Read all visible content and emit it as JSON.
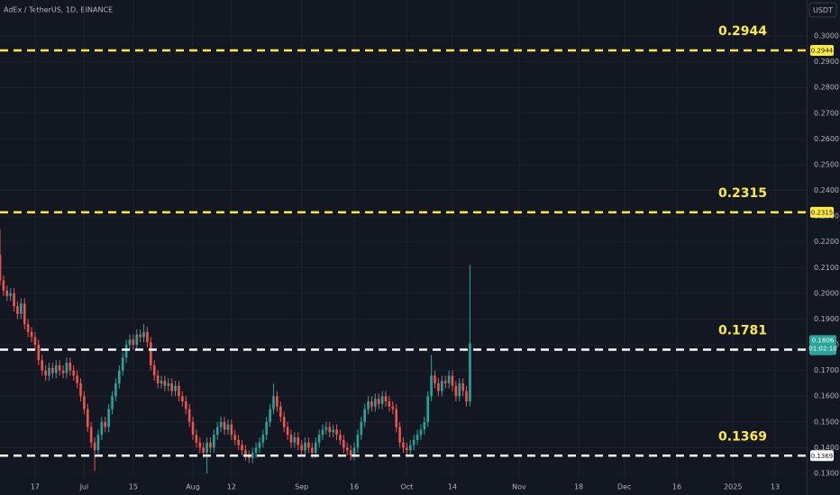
{
  "chart_data": {
    "type": "candlestick",
    "title": "AdEx / TetherUS, 1D, BINANCE",
    "currency": "USDT",
    "up_color": "#26a69a",
    "down_color": "#ef5350",
    "grid": true,
    "xlim": [
      0,
      230
    ],
    "ylim": [
      0.1286,
      0.314
    ],
    "xticks": [
      {
        "value": 10,
        "label": "17"
      },
      {
        "value": 24,
        "label": "Jul"
      },
      {
        "value": 38,
        "label": "15"
      },
      {
        "value": 55,
        "label": "Aug"
      },
      {
        "value": 66,
        "label": "12"
      },
      {
        "value": 86,
        "label": "Sep"
      },
      {
        "value": 101,
        "label": "16"
      },
      {
        "value": 116,
        "label": "Oct"
      },
      {
        "value": 129,
        "label": "14"
      },
      {
        "value": 148,
        "label": "Nov"
      },
      {
        "value": 165,
        "label": "18"
      },
      {
        "value": 178,
        "label": "Dec"
      },
      {
        "value": 193,
        "label": "16"
      },
      {
        "value": 209,
        "label": "2025"
      },
      {
        "value": 221,
        "label": "13"
      }
    ],
    "yticks": [
      {
        "value": 0.13,
        "label": "0.1300"
      },
      {
        "value": 0.14,
        "label": "0.1400"
      },
      {
        "value": 0.15,
        "label": "0.1500"
      },
      {
        "value": 0.16,
        "label": "0.1600"
      },
      {
        "value": 0.17,
        "label": "0.1700"
      },
      {
        "value": 0.18,
        "label": "0.1800"
      },
      {
        "value": 0.19,
        "label": "0.1900"
      },
      {
        "value": 0.2,
        "label": "0.2000"
      },
      {
        "value": 0.21,
        "label": "0.2100"
      },
      {
        "value": 0.22,
        "label": "0.2200"
      },
      {
        "value": 0.23,
        "label": "0.2300"
      },
      {
        "value": 0.24,
        "label": "0.2400"
      },
      {
        "value": 0.25,
        "label": "0.2500"
      },
      {
        "value": 0.26,
        "label": "0.2600"
      },
      {
        "value": 0.27,
        "label": "0.2700"
      },
      {
        "value": 0.28,
        "label": "0.2800"
      },
      {
        "value": 0.29,
        "label": "0.2900"
      },
      {
        "value": 0.3,
        "label": "0.3000"
      }
    ],
    "levels": [
      {
        "value": 0.2944,
        "color": "#ffeb3b"
      },
      {
        "value": 0.2315,
        "color": "#ffeb3b"
      },
      {
        "value": 0.1781,
        "color": "#ffffff"
      },
      {
        "value": 0.1369,
        "color": "#ffffff"
      }
    ],
    "countdown": "01:02:10",
    "x": [
      0,
      1,
      2,
      3,
      4,
      5,
      6,
      7,
      8,
      9,
      10,
      11,
      12,
      13,
      14,
      15,
      16,
      17,
      18,
      19,
      20,
      21,
      22,
      23,
      24,
      25,
      26,
      27,
      28,
      29,
      30,
      31,
      32,
      33,
      34,
      35,
      36,
      37,
      38,
      39,
      40,
      41,
      42,
      43,
      44,
      45,
      46,
      47,
      48,
      49,
      50,
      51,
      52,
      53,
      54,
      55,
      56,
      57,
      58,
      59,
      60,
      61,
      62,
      63,
      64,
      65,
      66,
      67,
      68,
      69,
      70,
      71,
      72,
      73,
      74,
      75,
      76,
      77,
      78,
      79,
      80,
      81,
      82,
      83,
      84,
      85,
      86,
      87,
      88,
      89,
      90,
      91,
      92,
      93,
      94,
      95,
      96,
      97,
      98,
      99,
      100,
      101,
      102,
      103,
      104,
      105,
      106,
      107,
      108,
      109,
      110,
      111,
      112,
      113,
      114,
      115,
      116,
      117,
      118,
      119,
      120,
      121,
      122,
      123,
      124,
      125,
      126,
      127,
      128,
      129,
      130,
      131,
      132,
      133,
      134
    ],
    "open": [
      0.215,
      0.205,
      0.201,
      0.199,
      0.2,
      0.195,
      0.192,
      0.196,
      0.188,
      0.185,
      0.183,
      0.18,
      0.174,
      0.17,
      0.168,
      0.171,
      0.169,
      0.172,
      0.17,
      0.169,
      0.173,
      0.17,
      0.168,
      0.165,
      0.16,
      0.155,
      0.148,
      0.142,
      0.139,
      0.145,
      0.15,
      0.148,
      0.155,
      0.16,
      0.165,
      0.17,
      0.175,
      0.18,
      0.182,
      0.18,
      0.184,
      0.183,
      0.185,
      0.181,
      0.172,
      0.168,
      0.165,
      0.166,
      0.164,
      0.165,
      0.162,
      0.164,
      0.16,
      0.158,
      0.155,
      0.15,
      0.145,
      0.142,
      0.14,
      0.138,
      0.142,
      0.14,
      0.145,
      0.148,
      0.15,
      0.147,
      0.149,
      0.145,
      0.143,
      0.141,
      0.139,
      0.137,
      0.136,
      0.138,
      0.14,
      0.142,
      0.145,
      0.15,
      0.155,
      0.16,
      0.156,
      0.152,
      0.148,
      0.145,
      0.142,
      0.144,
      0.141,
      0.139,
      0.142,
      0.14,
      0.138,
      0.142,
      0.145,
      0.147,
      0.148,
      0.146,
      0.147,
      0.145,
      0.143,
      0.14,
      0.139,
      0.137,
      0.14,
      0.145,
      0.15,
      0.155,
      0.158,
      0.156,
      0.159,
      0.157,
      0.16,
      0.158,
      0.156,
      0.155,
      0.148,
      0.142,
      0.14,
      0.139,
      0.141,
      0.143,
      0.145,
      0.147,
      0.15,
      0.16,
      0.168,
      0.165,
      0.162,
      0.166,
      0.165,
      0.168,
      0.164,
      0.16,
      0.165,
      0.162,
      0.158
    ],
    "high": [
      0.225,
      0.207,
      0.203,
      0.202,
      0.202,
      0.197,
      0.198,
      0.198,
      0.19,
      0.187,
      0.185,
      0.182,
      0.176,
      0.172,
      0.173,
      0.173,
      0.174,
      0.174,
      0.172,
      0.175,
      0.175,
      0.172,
      0.17,
      0.167,
      0.162,
      0.157,
      0.15,
      0.144,
      0.147,
      0.152,
      0.152,
      0.157,
      0.162,
      0.167,
      0.172,
      0.177,
      0.182,
      0.184,
      0.184,
      0.186,
      0.186,
      0.188,
      0.187,
      0.183,
      0.174,
      0.17,
      0.168,
      0.168,
      0.167,
      0.167,
      0.166,
      0.166,
      0.162,
      0.16,
      0.157,
      0.152,
      0.147,
      0.144,
      0.142,
      0.144,
      0.144,
      0.147,
      0.15,
      0.152,
      0.152,
      0.151,
      0.151,
      0.147,
      0.145,
      0.143,
      0.141,
      0.139,
      0.14,
      0.142,
      0.144,
      0.147,
      0.152,
      0.157,
      0.165,
      0.162,
      0.158,
      0.154,
      0.15,
      0.147,
      0.146,
      0.146,
      0.143,
      0.144,
      0.144,
      0.142,
      0.144,
      0.147,
      0.149,
      0.15,
      0.15,
      0.149,
      0.149,
      0.147,
      0.145,
      0.142,
      0.141,
      0.142,
      0.147,
      0.152,
      0.157,
      0.16,
      0.16,
      0.161,
      0.161,
      0.162,
      0.162,
      0.16,
      0.158,
      0.157,
      0.15,
      0.144,
      0.142,
      0.143,
      0.145,
      0.147,
      0.149,
      0.152,
      0.162,
      0.176,
      0.17,
      0.167,
      0.168,
      0.168,
      0.17,
      0.17,
      0.166,
      0.167,
      0.167,
      0.164,
      0.211
    ],
    "low": [
      0.203,
      0.199,
      0.197,
      0.197,
      0.193,
      0.19,
      0.19,
      0.186,
      0.183,
      0.181,
      0.178,
      0.172,
      0.168,
      0.166,
      0.166,
      0.167,
      0.167,
      0.168,
      0.167,
      0.167,
      0.168,
      0.166,
      0.163,
      0.158,
      0.153,
      0.146,
      0.14,
      0.131,
      0.137,
      0.143,
      0.146,
      0.146,
      0.153,
      0.158,
      0.163,
      0.168,
      0.173,
      0.178,
      0.178,
      0.178,
      0.181,
      0.181,
      0.179,
      0.17,
      0.166,
      0.163,
      0.163,
      0.162,
      0.162,
      0.16,
      0.16,
      0.158,
      0.156,
      0.153,
      0.148,
      0.143,
      0.14,
      0.138,
      0.136,
      0.13,
      0.138,
      0.138,
      0.143,
      0.146,
      0.145,
      0.145,
      0.143,
      0.141,
      0.139,
      0.137,
      0.135,
      0.134,
      0.134,
      0.136,
      0.138,
      0.14,
      0.143,
      0.148,
      0.153,
      0.154,
      0.15,
      0.146,
      0.143,
      0.14,
      0.14,
      0.139,
      0.137,
      0.137,
      0.138,
      0.136,
      0.136,
      0.14,
      0.143,
      0.145,
      0.144,
      0.144,
      0.143,
      0.141,
      0.138,
      0.137,
      0.135,
      0.135,
      0.138,
      0.143,
      0.148,
      0.153,
      0.154,
      0.154,
      0.155,
      0.155,
      0.156,
      0.154,
      0.153,
      0.146,
      0.14,
      0.138,
      0.137,
      0.137,
      0.139,
      0.141,
      0.143,
      0.145,
      0.148,
      0.158,
      0.163,
      0.16,
      0.16,
      0.163,
      0.163,
      0.162,
      0.158,
      0.158,
      0.16,
      0.156,
      0.156
    ],
    "close": [
      0.205,
      0.201,
      0.199,
      0.2,
      0.195,
      0.192,
      0.196,
      0.188,
      0.185,
      0.183,
      0.18,
      0.174,
      0.17,
      0.168,
      0.171,
      0.169,
      0.172,
      0.17,
      0.169,
      0.173,
      0.17,
      0.168,
      0.165,
      0.16,
      0.155,
      0.148,
      0.142,
      0.139,
      0.145,
      0.15,
      0.148,
      0.155,
      0.16,
      0.165,
      0.17,
      0.175,
      0.18,
      0.182,
      0.18,
      0.184,
      0.183,
      0.185,
      0.181,
      0.172,
      0.168,
      0.165,
      0.166,
      0.164,
      0.165,
      0.162,
      0.164,
      0.16,
      0.158,
      0.155,
      0.15,
      0.145,
      0.142,
      0.14,
      0.138,
      0.142,
      0.14,
      0.145,
      0.148,
      0.15,
      0.147,
      0.149,
      0.145,
      0.143,
      0.141,
      0.139,
      0.137,
      0.136,
      0.138,
      0.14,
      0.142,
      0.145,
      0.15,
      0.155,
      0.16,
      0.156,
      0.152,
      0.148,
      0.145,
      0.142,
      0.144,
      0.141,
      0.139,
      0.142,
      0.14,
      0.138,
      0.142,
      0.145,
      0.147,
      0.148,
      0.146,
      0.147,
      0.145,
      0.143,
      0.14,
      0.139,
      0.137,
      0.14,
      0.145,
      0.15,
      0.155,
      0.158,
      0.156,
      0.159,
      0.157,
      0.16,
      0.158,
      0.156,
      0.155,
      0.148,
      0.142,
      0.14,
      0.139,
      0.141,
      0.143,
      0.145,
      0.147,
      0.15,
      0.16,
      0.168,
      0.165,
      0.162,
      0.166,
      0.165,
      0.168,
      0.164,
      0.16,
      0.165,
      0.162,
      0.158,
      0.1806
    ]
  }
}
